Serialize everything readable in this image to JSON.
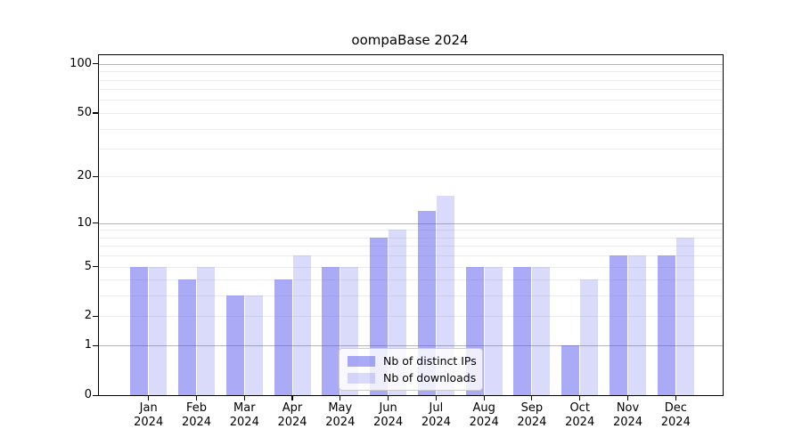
{
  "title": "oompaBase 2024",
  "chart_data": {
    "type": "bar",
    "title": "oompaBase 2024",
    "categories": [
      "Jan",
      "Feb",
      "Mar",
      "Apr",
      "May",
      "Jun",
      "Jul",
      "Aug",
      "Sep",
      "Oct",
      "Nov",
      "Dec"
    ],
    "x_year_label": "2024",
    "series": [
      {
        "name": "Nb of distinct IPs",
        "color": "rgba(85,85,238,0.5)",
        "values": [
          5,
          4,
          3,
          4,
          5,
          8,
          12,
          5,
          5,
          1,
          6,
          6
        ]
      },
      {
        "name": "Nb of downloads",
        "color": "rgba(85,85,238,0.22)",
        "values": [
          5,
          5,
          3,
          6,
          5,
          9,
          15,
          5,
          5,
          4,
          6,
          8
        ]
      }
    ],
    "yscale": "log10(1+v)",
    "ylim": [
      0,
      113
    ],
    "y_ticks": [
      0,
      1,
      2,
      5,
      10,
      20,
      50,
      100
    ],
    "y_major_grid": [
      1,
      10,
      100
    ],
    "y_minor_grid": [
      2,
      3,
      4,
      5,
      6,
      7,
      8,
      9,
      20,
      30,
      40,
      50,
      60,
      70,
      80,
      90
    ],
    "legend_position": "lower-center-inside",
    "colors": {
      "bar_base": "#5555ee",
      "grid_major": "#b5b5b5",
      "grid_minor": "#ececec",
      "axis": "#000000",
      "background": "#ffffff"
    }
  }
}
